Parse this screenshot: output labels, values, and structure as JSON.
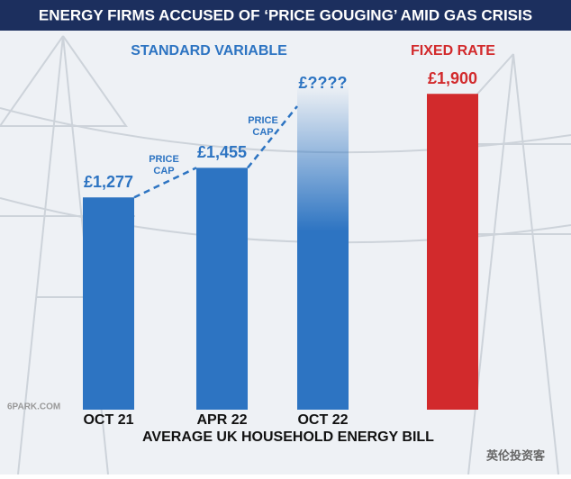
{
  "chart_data": {
    "type": "bar",
    "title": "ENERGY FIRMS ACCUSED OF ‘PRICE GOUGING’ AMID GAS CRISIS",
    "group_labels": [
      "STANDARD VARIABLE",
      "FIXED RATE"
    ],
    "annotations": [
      "PRICE CAP",
      "PRICE CAP"
    ],
    "x_label": "AVERAGE UK HOUSEHOLD ENERGY BILL",
    "categories": [
      "OCT 21",
      "APR 22",
      "OCT 22",
      null
    ],
    "values": [
      1277,
      1455,
      1950,
      1900
    ],
    "value_labels": [
      "£1,277",
      "£1,455",
      "£????",
      "£1,900"
    ],
    "colors": [
      "#2d74c2",
      "#2d74c2",
      "#2d74c2",
      "#d22a2c"
    ],
    "faded": [
      false,
      false,
      true,
      false
    ],
    "watermarks": [
      "6PARK.COM",
      "英伦投资客"
    ]
  }
}
